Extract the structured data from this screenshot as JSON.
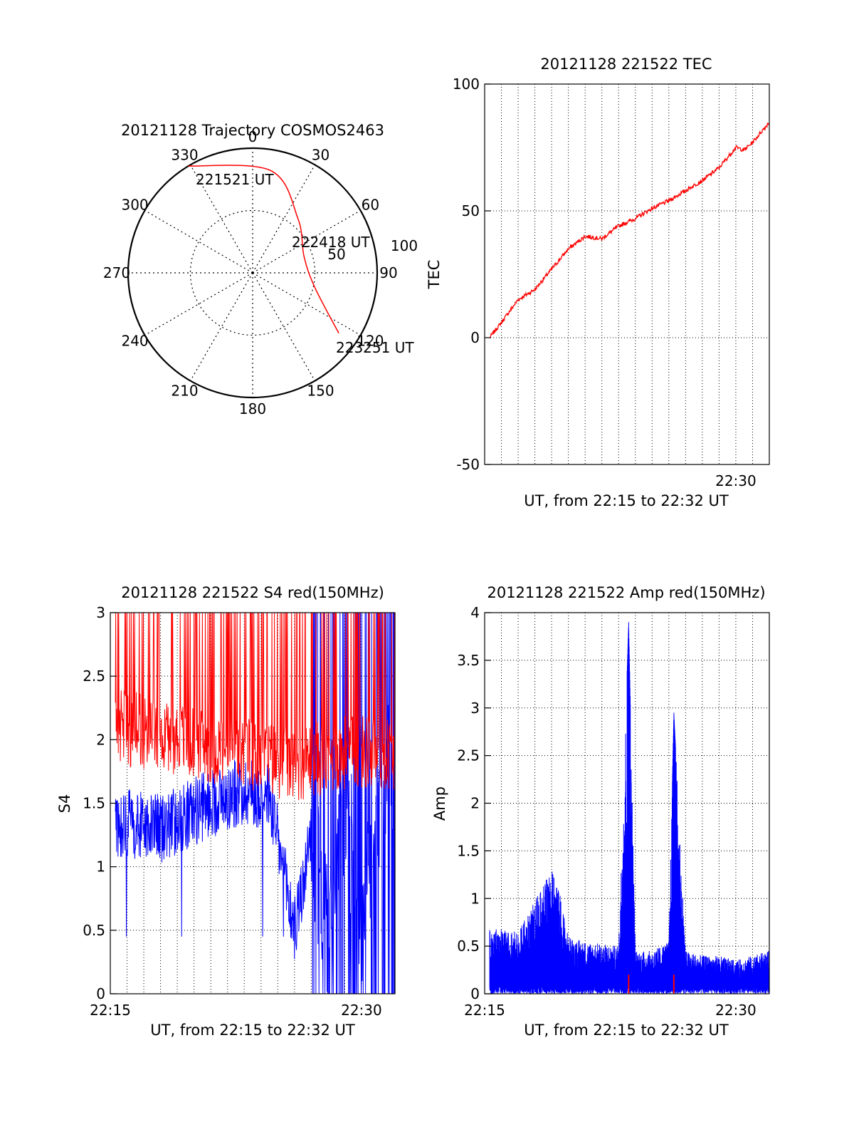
{
  "chart_data": [
    {
      "type": "polar",
      "title": "20121128 Trajectory COSMOS2463",
      "rlim": [
        0,
        100
      ],
      "radial_ticks": [
        "50",
        "100"
      ],
      "angle_labels": [
        "0",
        "30",
        "60",
        "90",
        "120",
        "150",
        "180",
        "210",
        "240",
        "270",
        "300",
        "330"
      ],
      "trajectory": {
        "color": "#ff0000",
        "points": [
          {
            "azimuth": 329,
            "elevation": 0,
            "label": "221521 UT"
          },
          {
            "azimuth": 10,
            "elevation": 15
          },
          {
            "azimuth": 40,
            "elevation": 39
          },
          {
            "azimuth": 72,
            "elevation": 51,
            "label": "222418 UT"
          },
          {
            "azimuth": 103,
            "elevation": 44
          },
          {
            "azimuth": 125,
            "elevation": 14,
            "label": "223251 UT"
          }
        ]
      }
    },
    {
      "type": "line",
      "title": "20121128 221522 TEC",
      "xlabel": "UT, from 22:15 to 22:32 UT",
      "ylabel": "TEC",
      "xlim": [
        0,
        17
      ],
      "ylim": [
        -50,
        100
      ],
      "x_unit": "minutes after 22:15 UT",
      "yticks": [
        -50,
        0,
        50,
        100
      ],
      "xtick_labels": [
        {
          "x": 15,
          "label": "22:30"
        }
      ],
      "grid": true,
      "series": [
        {
          "color": "#ff0000",
          "x": [
            0.3,
            1,
            2,
            3,
            4,
            5,
            6,
            7,
            8,
            9,
            10,
            11,
            12,
            13,
            14,
            15,
            15.5,
            16,
            17
          ],
          "values": [
            0,
            6,
            15,
            19,
            27,
            35,
            40,
            39,
            44,
            47,
            51,
            54,
            58,
            62,
            67,
            75,
            74,
            77,
            85
          ]
        }
      ]
    },
    {
      "type": "line",
      "title": "20121128 221522 S4 red(150MHz)",
      "xlabel": "UT, from 22:15 to 22:32 UT",
      "ylabel": "S4",
      "xlim": [
        0,
        17
      ],
      "ylim": [
        0,
        3
      ],
      "yticks": [
        "0",
        "0.5",
        "1",
        "1.5",
        "2",
        "2.5",
        "3"
      ],
      "xtick_labels": [
        {
          "x": 0,
          "label": "22:15"
        },
        {
          "x": 15,
          "label": "22:30"
        }
      ],
      "grid": true,
      "series": [
        {
          "color": "#0000ff",
          "x": [
            0.3,
            3,
            6,
            8,
            9.5,
            11,
            12,
            13,
            14,
            15,
            16,
            17
          ],
          "values": [
            1.35,
            1.3,
            1.5,
            1.6,
            1.55,
            0.5,
            1.2,
            0.5,
            1.5,
            0.6,
            1.5,
            1.8
          ]
        },
        {
          "color": "#ff0000",
          "x": [
            0.3,
            3,
            6,
            8,
            9.5,
            11,
            12,
            13,
            14,
            15,
            16,
            17
          ],
          "values": [
            2.1,
            2.05,
            1.95,
            1.9,
            1.85,
            1.8,
            1.85,
            1.85,
            1.9,
            1.9,
            1.9,
            1.9
          ]
        }
      ]
    },
    {
      "type": "line",
      "title": "20121128 221522 Amp red(150MHz)",
      "xlabel": "UT, from 22:15 to 22:32 UT",
      "ylabel": "Amp",
      "xlim": [
        0,
        17
      ],
      "ylim": [
        0,
        4
      ],
      "yticks": [
        "0",
        "0.5",
        "1",
        "1.5",
        "2",
        "2.5",
        "3",
        "3.5",
        "4"
      ],
      "xtick_labels": [
        {
          "x": 0,
          "label": "22:15"
        },
        {
          "x": 15,
          "label": "22:30"
        }
      ],
      "grid": true,
      "series": [
        {
          "color": "#0000ff",
          "x": [
            0.3,
            2,
            4,
            4.5,
            5,
            6,
            8,
            8.6,
            9,
            10,
            11,
            11.3,
            12,
            13,
            14,
            15,
            16,
            17
          ],
          "values": [
            0.7,
            0.65,
            1.3,
            1.05,
            0.6,
            0.55,
            0.5,
            3.9,
            0.45,
            0.45,
            0.55,
            2.95,
            0.45,
            0.4,
            0.4,
            0.35,
            0.4,
            0.45
          ]
        },
        {
          "color": "#ff0000",
          "x": [
            8.6,
            11.3
          ],
          "values": [
            0.2,
            0.2
          ]
        }
      ]
    }
  ]
}
